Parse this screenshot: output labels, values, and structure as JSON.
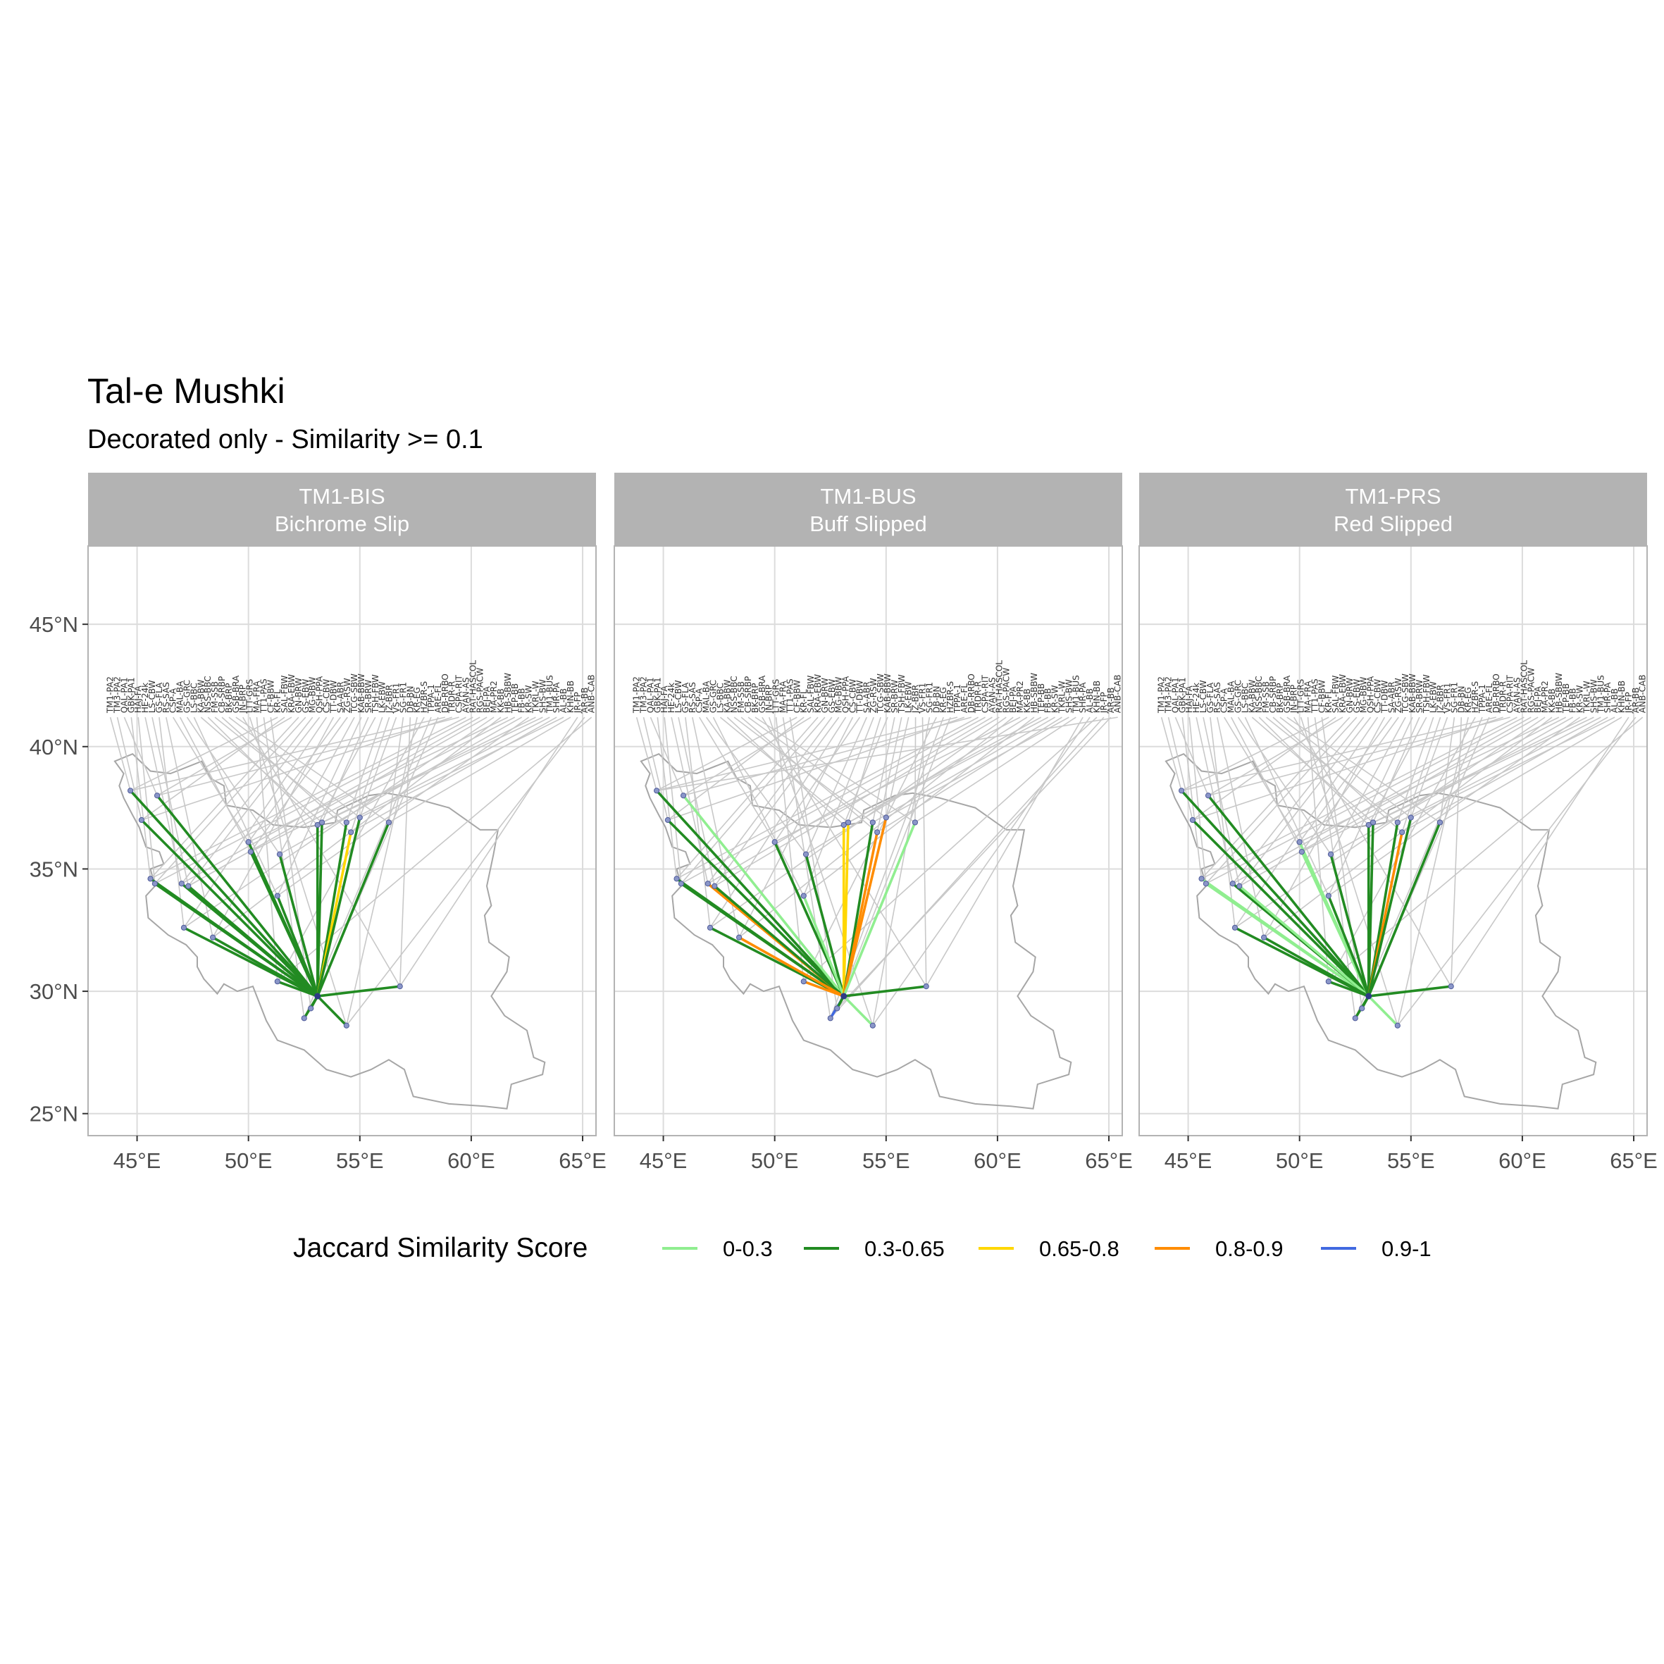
{
  "title": "Tal-e Mushki",
  "subtitle": "Decorated only - Similarity >= 0.1",
  "axes": {
    "x_ticks": [
      "45°E",
      "50°E",
      "55°E",
      "60°E",
      "65°E"
    ],
    "x_tick_values": [
      45,
      50,
      55,
      60,
      65
    ],
    "y_ticks": [
      "25°N",
      "30°N",
      "35°N",
      "40°N",
      "45°N"
    ],
    "y_tick_values": [
      25,
      30,
      35,
      40,
      45
    ],
    "xlim": [
      42.8,
      65.6
    ],
    "ylim": [
      24.1,
      48.2
    ]
  },
  "legend": {
    "title": "Jaccard Similarity Score",
    "items": [
      {
        "label": "0-0.3",
        "color": "#90ee90"
      },
      {
        "label": "0.3-0.65",
        "color": "#228b22"
      },
      {
        "label": "0.65-0.8",
        "color": "#ffd700"
      },
      {
        "label": "0.8-0.9",
        "color": "#ff8c00"
      },
      {
        "label": "0.9-1",
        "color": "#4169e1"
      }
    ]
  },
  "panels": [
    {
      "id": "TM1-BIS",
      "strip_line1": "TM1-BIS",
      "strip_line2": "Bichrome Slip"
    },
    {
      "id": "TM1-BUS",
      "strip_line1": "TM1-BUS",
      "strip_line2": "Buff Slipped"
    },
    {
      "id": "TM1-PRS",
      "strip_line1": "TM1-PRS",
      "strip_line2": "Red Slipped"
    }
  ],
  "chart_data": {
    "type": "map",
    "origin": {
      "name": "Tal-e Mushki",
      "lon": 53.1,
      "lat": 29.8
    },
    "panels": [
      {
        "panel": "TM1-BIS",
        "connections": [
          {
            "lon": 44.7,
            "lat": 38.2,
            "class": "0.3-0.65"
          },
          {
            "lon": 45.2,
            "lat": 37.0,
            "class": "0.3-0.65"
          },
          {
            "lon": 45.9,
            "lat": 38.0,
            "class": "0.3-0.65"
          },
          {
            "lon": 45.6,
            "lat": 34.6,
            "class": "0.3-0.65"
          },
          {
            "lon": 45.8,
            "lat": 34.4,
            "class": "0.3-0.65"
          },
          {
            "lon": 47.0,
            "lat": 34.4,
            "class": "0.3-0.65"
          },
          {
            "lon": 47.3,
            "lat": 34.3,
            "class": "0.3-0.65"
          },
          {
            "lon": 47.1,
            "lat": 32.6,
            "class": "0.3-0.65"
          },
          {
            "lon": 48.4,
            "lat": 32.2,
            "class": "0.3-0.65"
          },
          {
            "lon": 50.0,
            "lat": 36.1,
            "class": "0.3-0.65"
          },
          {
            "lon": 50.1,
            "lat": 35.7,
            "class": "0.3-0.65"
          },
          {
            "lon": 51.4,
            "lat": 35.6,
            "class": "0.3-0.65"
          },
          {
            "lon": 51.3,
            "lat": 33.9,
            "class": "0.3-0.65"
          },
          {
            "lon": 53.3,
            "lat": 36.9,
            "class": "0.3-0.65"
          },
          {
            "lon": 53.1,
            "lat": 36.8,
            "class": "0.3-0.65"
          },
          {
            "lon": 54.4,
            "lat": 36.9,
            "class": "0.3-0.65"
          },
          {
            "lon": 54.6,
            "lat": 36.5,
            "class": "0.65-0.8"
          },
          {
            "lon": 55.0,
            "lat": 37.1,
            "class": "0.3-0.65"
          },
          {
            "lon": 56.3,
            "lat": 36.9,
            "class": "0.3-0.65"
          },
          {
            "lon": 56.8,
            "lat": 30.2,
            "class": "0.3-0.65"
          },
          {
            "lon": 54.4,
            "lat": 28.6,
            "class": "0.3-0.65"
          },
          {
            "lon": 51.3,
            "lat": 30.4,
            "class": "0.3-0.65"
          },
          {
            "lon": 52.5,
            "lat": 28.9,
            "class": "0.3-0.65"
          },
          {
            "lon": 52.8,
            "lat": 29.3,
            "class": "0.3-0.65"
          }
        ]
      },
      {
        "panel": "TM1-BUS",
        "connections": [
          {
            "lon": 44.7,
            "lat": 38.2,
            "class": "0.3-0.65"
          },
          {
            "lon": 45.2,
            "lat": 37.0,
            "class": "0.3-0.65"
          },
          {
            "lon": 45.9,
            "lat": 38.0,
            "class": "0-0.3"
          },
          {
            "lon": 45.6,
            "lat": 34.6,
            "class": "0.3-0.65"
          },
          {
            "lon": 45.8,
            "lat": 34.4,
            "class": "0.3-0.65"
          },
          {
            "lon": 47.0,
            "lat": 34.4,
            "class": "0.8-0.9"
          },
          {
            "lon": 47.3,
            "lat": 34.3,
            "class": "0.3-0.65"
          },
          {
            "lon": 47.1,
            "lat": 32.6,
            "class": "0.3-0.65"
          },
          {
            "lon": 48.4,
            "lat": 32.2,
            "class": "0.8-0.9"
          },
          {
            "lon": 50.0,
            "lat": 36.1,
            "class": "0.3-0.65"
          },
          {
            "lon": 51.4,
            "lat": 35.6,
            "class": "0.3-0.65"
          },
          {
            "lon": 51.3,
            "lat": 33.9,
            "class": "0-0.3"
          },
          {
            "lon": 53.3,
            "lat": 36.9,
            "class": "0.65-0.8"
          },
          {
            "lon": 53.1,
            "lat": 36.8,
            "class": "0.65-0.8"
          },
          {
            "lon": 54.4,
            "lat": 36.9,
            "class": "0.3-0.65"
          },
          {
            "lon": 54.6,
            "lat": 36.5,
            "class": "0.8-0.9"
          },
          {
            "lon": 55.0,
            "lat": 37.1,
            "class": "0.8-0.9"
          },
          {
            "lon": 56.3,
            "lat": 36.9,
            "class": "0-0.3"
          },
          {
            "lon": 56.8,
            "lat": 30.2,
            "class": "0.3-0.65"
          },
          {
            "lon": 54.4,
            "lat": 28.6,
            "class": "0-0.3"
          },
          {
            "lon": 51.3,
            "lat": 30.4,
            "class": "0.8-0.9"
          },
          {
            "lon": 52.5,
            "lat": 28.9,
            "class": "0.9-1"
          },
          {
            "lon": 52.8,
            "lat": 29.3,
            "class": "0.3-0.65"
          }
        ]
      },
      {
        "panel": "TM1-PRS",
        "connections": [
          {
            "lon": 44.7,
            "lat": 38.2,
            "class": "0.3-0.65"
          },
          {
            "lon": 45.2,
            "lat": 37.0,
            "class": "0.3-0.65"
          },
          {
            "lon": 45.9,
            "lat": 38.0,
            "class": "0.3-0.65"
          },
          {
            "lon": 45.6,
            "lat": 34.6,
            "class": "0-0.3"
          },
          {
            "lon": 45.8,
            "lat": 34.4,
            "class": "0-0.3"
          },
          {
            "lon": 47.0,
            "lat": 34.4,
            "class": "0.3-0.65"
          },
          {
            "lon": 47.3,
            "lat": 34.3,
            "class": "0-0.3"
          },
          {
            "lon": 47.1,
            "lat": 32.6,
            "class": "0.3-0.65"
          },
          {
            "lon": 48.4,
            "lat": 32.2,
            "class": "0.3-0.65"
          },
          {
            "lon": 50.0,
            "lat": 36.1,
            "class": "0-0.3"
          },
          {
            "lon": 50.1,
            "lat": 35.7,
            "class": "0-0.3"
          },
          {
            "lon": 51.4,
            "lat": 35.6,
            "class": "0.3-0.65"
          },
          {
            "lon": 51.3,
            "lat": 33.9,
            "class": "0.3-0.65"
          },
          {
            "lon": 53.3,
            "lat": 36.9,
            "class": "0.3-0.65"
          },
          {
            "lon": 53.1,
            "lat": 36.8,
            "class": "0.3-0.65"
          },
          {
            "lon": 54.4,
            "lat": 36.9,
            "class": "0.3-0.65"
          },
          {
            "lon": 54.6,
            "lat": 36.5,
            "class": "0.8-0.9"
          },
          {
            "lon": 55.0,
            "lat": 37.1,
            "class": "0.3-0.65"
          },
          {
            "lon": 56.3,
            "lat": 36.9,
            "class": "0.3-0.65"
          },
          {
            "lon": 56.8,
            "lat": 30.2,
            "class": "0.3-0.65"
          },
          {
            "lon": 54.4,
            "lat": 28.6,
            "class": "0-0.3"
          },
          {
            "lon": 51.3,
            "lat": 30.4,
            "class": "0.3-0.65"
          },
          {
            "lon": 52.5,
            "lat": 28.9,
            "class": "0.3-0.65"
          },
          {
            "lon": 52.8,
            "lat": 29.3,
            "class": "0.3-0.65"
          }
        ]
      }
    ],
    "site_labels": [
      "TM1-PA2",
      "TM3-PA2",
      "QAL-PA1",
      "GBK-PA1",
      "HAJ-FA",
      "HE-24k",
      "LS-CBW",
      "GS-FLA",
      "RS-SAS",
      "CSP-A",
      "MAL-BA",
      "GS-GRC",
      "LS-BBC",
      "KA-BBW",
      "NSS-BBC",
      "FM-SSB",
      "CB-SRBP",
      "BK-BRP",
      "GSB-BRA",
      "JN-BRP",
      "LTT-GRS",
      "MA-FRA",
      "TT1-PAS",
      "CF-BBW",
      "KR-FL",
      "SAL-FBW",
      "KRA-EBW",
      "GN-BRW",
      "GS-EBW",
      "MG-BBW",
      "QSH-PPA",
      "CS-CBW",
      "TT-DBW",
      "SA-ABR",
      "ZG-RSW",
      "TCG-SBW",
      "KAB-BBW",
      "SR-BRW",
      "TSH-FBW",
      "LK-EBW",
      "JZ-BBR",
      "VS-FR1",
      "SG-FR1",
      "DB-BN",
      "KR-EG",
      "HZBR-S",
      "TPPA-1",
      "ARE-FL",
      "DB-RRBO",
      "TRDR-R",
      "CSPA-RIT",
      "AYAN-AS",
      "RAT-HASCOL",
      "RGS-PACW",
      "BEJ-PA",
      "MA-PR2",
      "KK-BB",
      "HB-SBBW",
      "TEP-BB",
      "FB-BB",
      "KR-SW",
      "TKRL-W",
      "SHS-BW",
      "TM1-BUS",
      "SHR-PA",
      "AL-BB",
      "KHN-BB",
      "JR-FP",
      "AR-BB",
      "ANB-CAB"
    ]
  }
}
